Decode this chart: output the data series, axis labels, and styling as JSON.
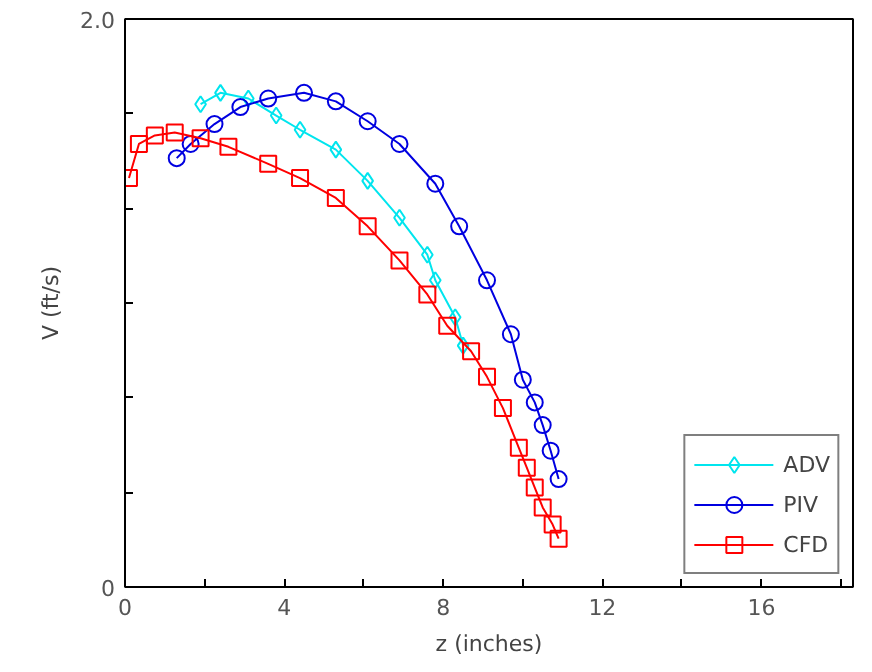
{
  "chart_data": {
    "type": "line",
    "xlabel": "z (inches)",
    "ylabel": "V (ft/s)",
    "xlim": [
      0,
      18.3
    ],
    "ylim": [
      0,
      2.0
    ],
    "xticks": [
      0,
      {
        "value": 2,
        "label": null
      },
      4,
      {
        "value": 6,
        "label": null
      },
      8,
      {
        "value": 10,
        "label": null
      },
      12,
      {
        "value": 14,
        "label": null
      },
      16,
      {
        "value": 18,
        "label": null
      }
    ],
    "yticks": [
      0,
      {
        "value": 0.333,
        "label": null
      },
      {
        "value": 0.667,
        "label": null
      },
      {
        "value": 1.0,
        "label": null
      },
      {
        "value": 1.333,
        "label": null
      },
      {
        "value": 1.667,
        "label": null
      },
      {
        "value": 2.0,
        "label": "2.0"
      }
    ],
    "grid": false,
    "legend": "bottom right",
    "line_style": "solid",
    "series": [
      {
        "name": "ADV",
        "color": "#00e5ee",
        "marker": "diamond",
        "x": [
          1.9,
          2.4,
          3.1,
          3.8,
          4.4,
          5.3,
          6.1,
          6.9,
          7.6,
          7.8,
          8.3,
          8.5
        ],
        "values": [
          1.7,
          1.74,
          1.72,
          1.66,
          1.61,
          1.54,
          1.43,
          1.3,
          1.17,
          1.08,
          0.95,
          0.85
        ]
      },
      {
        "name": "PIV",
        "color": "#0000e0",
        "marker": "circle",
        "x": [
          1.3,
          1.65,
          2.25,
          2.9,
          3.6,
          4.5,
          5.3,
          6.1,
          6.9,
          7.8,
          8.4,
          9.1,
          9.7,
          10.0,
          10.3,
          10.5,
          10.7,
          10.9
        ],
        "values": [
          1.51,
          1.56,
          1.63,
          1.69,
          1.72,
          1.74,
          1.71,
          1.64,
          1.56,
          1.42,
          1.27,
          1.08,
          0.89,
          0.73,
          0.65,
          0.57,
          0.48,
          0.38
        ]
      },
      {
        "name": "CFD",
        "color": "#ff0000",
        "marker": "square",
        "x": [
          0.1,
          0.35,
          0.75,
          1.25,
          1.9,
          2.6,
          3.6,
          4.4,
          5.3,
          6.1,
          6.9,
          7.6,
          8.1,
          8.7,
          9.1,
          9.5,
          9.9,
          10.1,
          10.3,
          10.5,
          10.75,
          10.9
        ],
        "values": [
          1.44,
          1.56,
          1.59,
          1.6,
          1.58,
          1.55,
          1.49,
          1.44,
          1.37,
          1.27,
          1.15,
          1.03,
          0.92,
          0.83,
          0.74,
          0.63,
          0.49,
          0.42,
          0.35,
          0.28,
          0.22,
          0.17
        ]
      }
    ]
  }
}
